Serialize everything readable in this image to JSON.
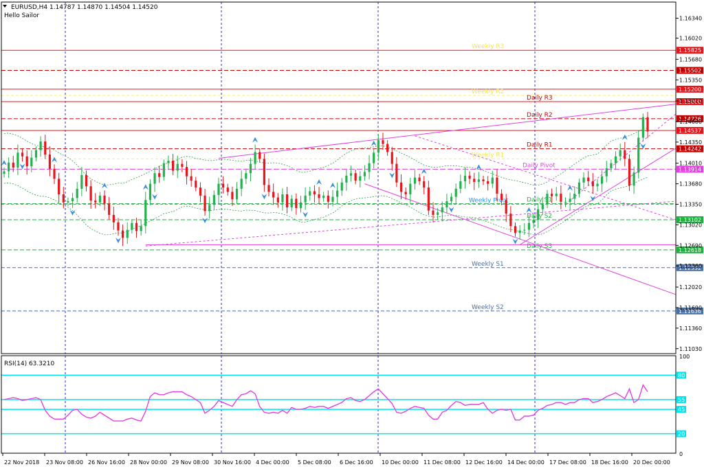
{
  "header": {
    "symbol_line": "EURUSD,H4  1.14787 1.14870 1.14504 1.14520",
    "indicator_name": "Hello Sailor"
  },
  "colors": {
    "bull": "#22b14c",
    "bear": "#e8141b",
    "weekly_level": "#e8141b",
    "daily_level": "#c00000",
    "pivot": "#e040e0",
    "support": "#20b040",
    "trend": "#e040e0",
    "rsi_line": "#e040e0",
    "rsi_levels": "#00e5ee",
    "weekly_label": "#4a6fa5"
  },
  "chart_data": [
    {
      "type": "candlestick",
      "title": "",
      "ylim": [
        1.1095,
        1.166
      ],
      "y_ticks": [
        "1.16340",
        "1.16020",
        "1.15680",
        "1.15350",
        "1.15010",
        "1.14680",
        "1.14350",
        "1.14010",
        "1.13680",
        "1.13350",
        "1.13020",
        "1.12690",
        "1.12360",
        "1.12020",
        "1.11690",
        "1.11360",
        "1.11030"
      ],
      "x_ticks": [
        "22 Nov 2018",
        "23 Nov 08:00",
        "26 Nov 16:00",
        "28 Nov 00:00",
        "29 Nov 08:00",
        "30 Nov 16:00",
        "4 Dec 00:00",
        "5 Dec 08:00",
        "6 Dec 16:00",
        "10 Dec 00:00",
        "11 Dec 08:00",
        "12 Dec 16:00",
        "14 Dec 00:00",
        "17 Dec 08:00",
        "18 Dec 16:00",
        "20 Dec 00:00"
      ],
      "close_series": [
        1.1388,
        1.1402,
        1.1394,
        1.1418,
        1.1412,
        1.1396,
        1.141,
        1.1422,
        1.1436,
        1.1415,
        1.1392,
        1.1376,
        1.1351,
        1.1338,
        1.134,
        1.1345,
        1.136,
        1.1382,
        1.1364,
        1.1341,
        1.1338,
        1.1349,
        1.1336,
        1.1318,
        1.1306,
        1.1293,
        1.1281,
        1.1294,
        1.1305,
        1.1292,
        1.13,
        1.1342,
        1.1368,
        1.1385,
        1.1379,
        1.1401,
        1.1405,
        1.1389,
        1.14,
        1.1395,
        1.138,
        1.1373,
        1.1362,
        1.1349,
        1.1324,
        1.1334,
        1.135,
        1.1368,
        1.1362,
        1.1355,
        1.1343,
        1.136,
        1.1376,
        1.1385,
        1.14,
        1.1419,
        1.1408,
        1.1366,
        1.1355,
        1.1346,
        1.1338,
        1.1351,
        1.133,
        1.1344,
        1.1329,
        1.1338,
        1.1349,
        1.1356,
        1.1351,
        1.1345,
        1.1349,
        1.1339,
        1.1347,
        1.1357,
        1.137,
        1.1381,
        1.1385,
        1.1373,
        1.138,
        1.1387,
        1.1401,
        1.1418,
        1.1438,
        1.1432,
        1.1419,
        1.14,
        1.137,
        1.1355,
        1.1351,
        1.1368,
        1.1378,
        1.1372,
        1.1362,
        1.1325,
        1.1318,
        1.1322,
        1.133,
        1.134,
        1.1347,
        1.136,
        1.1372,
        1.1381,
        1.1376,
        1.1371,
        1.1375,
        1.1372,
        1.1368,
        1.1378,
        1.1352,
        1.1342,
        1.132,
        1.13,
        1.1289,
        1.1293,
        1.1294,
        1.1305,
        1.131,
        1.1327,
        1.1335,
        1.1352,
        1.1348,
        1.1352,
        1.1339,
        1.1339,
        1.1344,
        1.1352,
        1.137,
        1.1378,
        1.1372,
        1.1364,
        1.1368,
        1.138,
        1.1393,
        1.1401,
        1.1412,
        1.1422,
        1.1408,
        1.1365,
        1.1386,
        1.1442,
        1.1475,
        1.1452
      ],
      "levels": [
        {
          "label": "Weekly R3",
          "price": "1.15825",
          "value": 1.15825
        },
        {
          "label": "",
          "price": "1.15502",
          "value": 1.15502
        },
        {
          "label": "",
          "price": "1.15200",
          "value": 1.152
        },
        {
          "label": "Weekly R2",
          "price": "",
          "value": 1.151
        },
        {
          "label": "Daily R3",
          "price": "1.15000",
          "value": 1.15
        },
        {
          "label": "Daily R2",
          "price": "1.14726",
          "value": 1.14726
        },
        {
          "label": "",
          "price": "1.14537",
          "value": 1.14537
        },
        {
          "label": "Daily R1",
          "price": "1.14242",
          "value": 1.14242
        },
        {
          "label": "Weekly R1",
          "price": "",
          "value": 1.1408
        },
        {
          "label": "Daily Pivot",
          "price": "1.13914",
          "value": 1.13914
        },
        {
          "label": "Weekly Pivot",
          "price": "",
          "value": 1.1335
        },
        {
          "label": "Daily S1",
          "price": "",
          "value": 1.1336
        },
        {
          "label": "Daily S2",
          "price": "1.13102",
          "value": 1.13102
        },
        {
          "label": "Daily S3",
          "price": "1.12618",
          "value": 1.12618
        },
        {
          "label": "Weekly S1",
          "price": "1.12332",
          "value": 1.12332
        },
        {
          "label": "Weekly S2",
          "price": "1.11636",
          "value": 1.11636
        }
      ]
    },
    {
      "type": "line",
      "title": "RSI(14) 63.3210",
      "ylim": [
        0,
        100
      ],
      "y_ticks": [
        "100",
        "0"
      ],
      "levels": [
        {
          "label": "80",
          "value": 80
        },
        {
          "label": "55",
          "value": 55
        },
        {
          "label": "45",
          "value": 45
        },
        {
          "label": "20",
          "value": 20
        }
      ],
      "values": [
        55,
        56,
        57,
        56,
        54,
        55,
        56,
        57,
        55,
        44,
        38,
        35,
        35,
        35,
        39,
        44,
        45,
        40,
        37,
        36,
        38,
        42,
        39,
        36,
        33,
        33,
        33,
        35,
        36,
        34,
        33,
        43,
        58,
        62,
        60,
        60,
        62,
        63,
        63,
        63,
        60,
        58,
        55,
        52,
        41,
        44,
        48,
        54,
        52,
        50,
        48,
        55,
        60,
        61,
        64,
        61,
        48,
        42,
        41,
        42,
        41,
        44,
        41,
        47,
        45,
        45,
        46,
        48,
        47,
        48,
        48,
        46,
        48,
        50,
        52,
        56,
        57,
        54,
        53,
        55,
        59,
        63,
        66,
        61,
        56,
        51,
        42,
        41,
        43,
        46,
        48,
        47,
        46,
        39,
        35,
        35,
        42,
        44,
        49,
        53,
        52,
        49,
        50,
        50,
        50,
        52,
        45,
        41,
        44,
        45,
        44,
        45,
        34,
        34,
        38,
        38,
        39,
        44,
        46,
        49,
        50,
        52,
        52,
        50,
        52,
        52,
        55,
        56,
        56,
        52,
        53,
        55,
        58,
        60,
        62,
        59,
        56,
        66,
        52,
        55,
        70,
        63
      ]
    }
  ]
}
